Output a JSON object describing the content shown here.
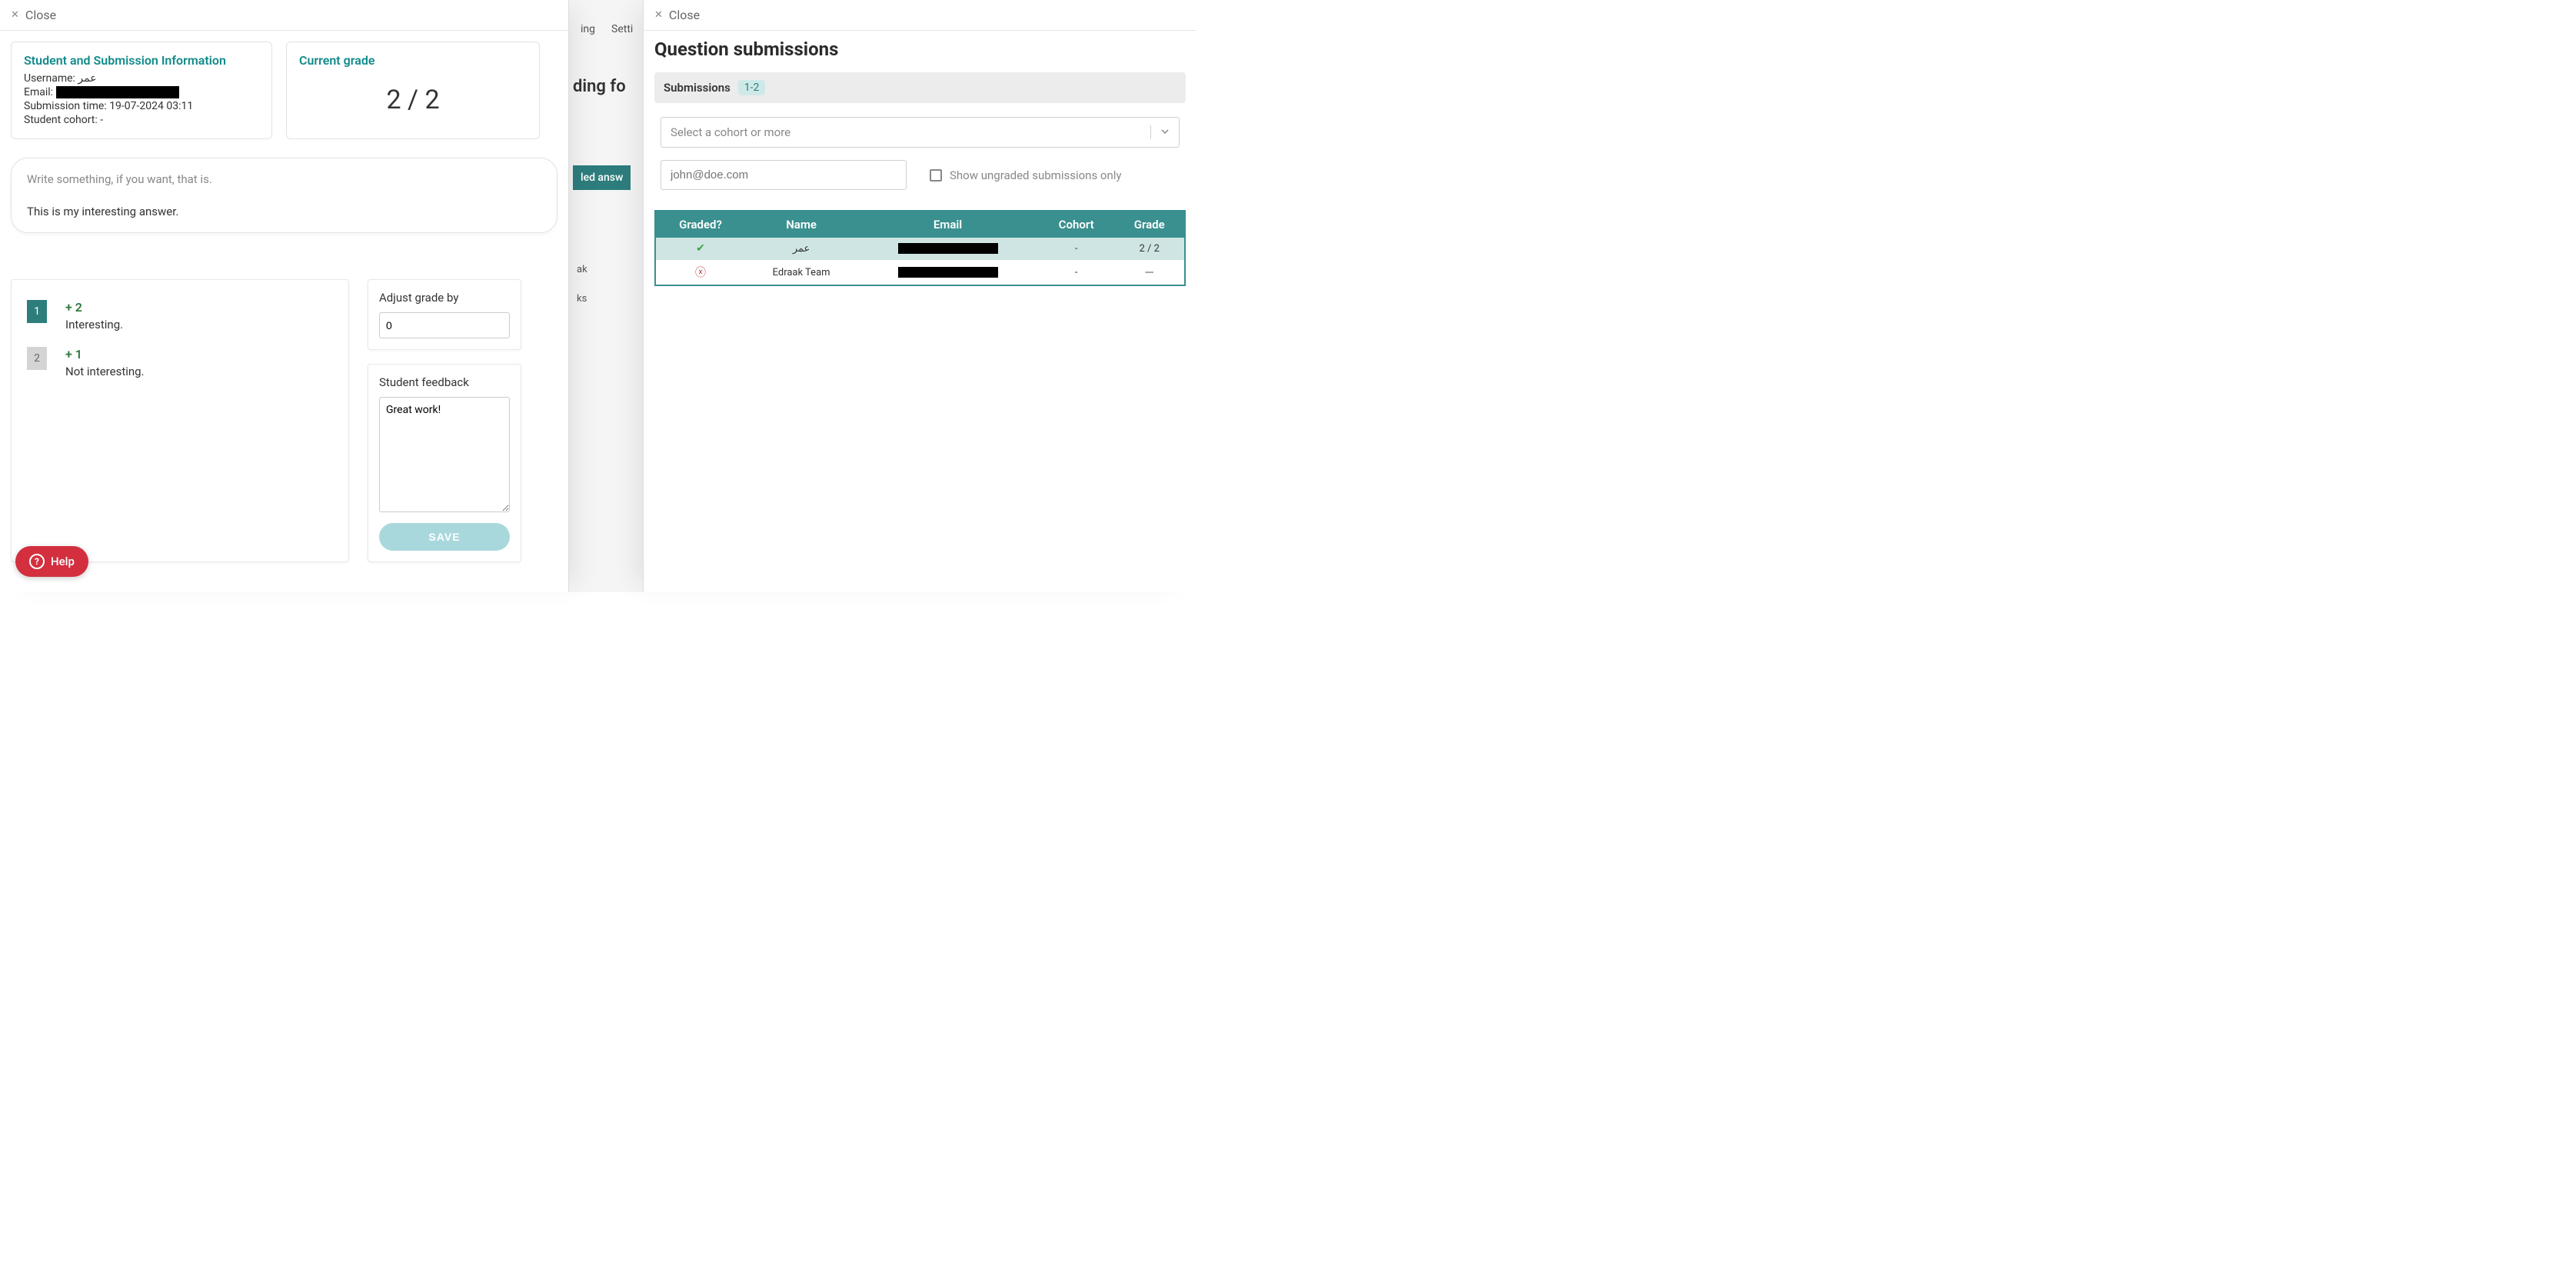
{
  "close_label": "Close",
  "bg": {
    "nav1": "ing",
    "nav2": "Setti",
    "heading": "ding fo",
    "tab": "led answ",
    "txt1": "ak",
    "txt2": "ks"
  },
  "left": {
    "student_card_title": "Student and Submission Information",
    "username_label": "Username:",
    "username_value": "عمر",
    "email_label": "Email:",
    "subtime_label": "Submission time:",
    "subtime_value": "19-07-2024 03:11",
    "cohort_label": "Student cohort:",
    "cohort_value": "-",
    "grade_title": "Current grade",
    "grade_value": "2 / 2",
    "answer_prompt": "Write something, if you want, that is.",
    "answer_text": "This is my interesting answer.",
    "rubric": [
      {
        "n": "1",
        "pts": "+ 2",
        "desc": "Interesting.",
        "selected": true
      },
      {
        "n": "2",
        "pts": "+ 1",
        "desc": "Not interesting.",
        "selected": false
      }
    ],
    "adjust_label": "Adjust grade by",
    "adjust_value": "0",
    "feedback_label": "Student feedback",
    "feedback_value": "Great work!",
    "save_label": "SAVE"
  },
  "right": {
    "title": "Question submissions",
    "subs_label": "Submissions",
    "subs_badge": "1-2",
    "cohort_placeholder": "Select a cohort or more",
    "email_placeholder": "john@doe.com",
    "show_ungraded": "Show ungraded submissions only",
    "columns": [
      "Graded?",
      "Name",
      "Email",
      "Cohort",
      "Grade"
    ],
    "rows": [
      {
        "graded": true,
        "name": "عمر",
        "cohort": "-",
        "grade": "2 / 2",
        "selected": true
      },
      {
        "graded": false,
        "name": "Edraak Team",
        "cohort": "-",
        "grade": "---",
        "selected": false
      }
    ]
  },
  "help_label": "Help"
}
